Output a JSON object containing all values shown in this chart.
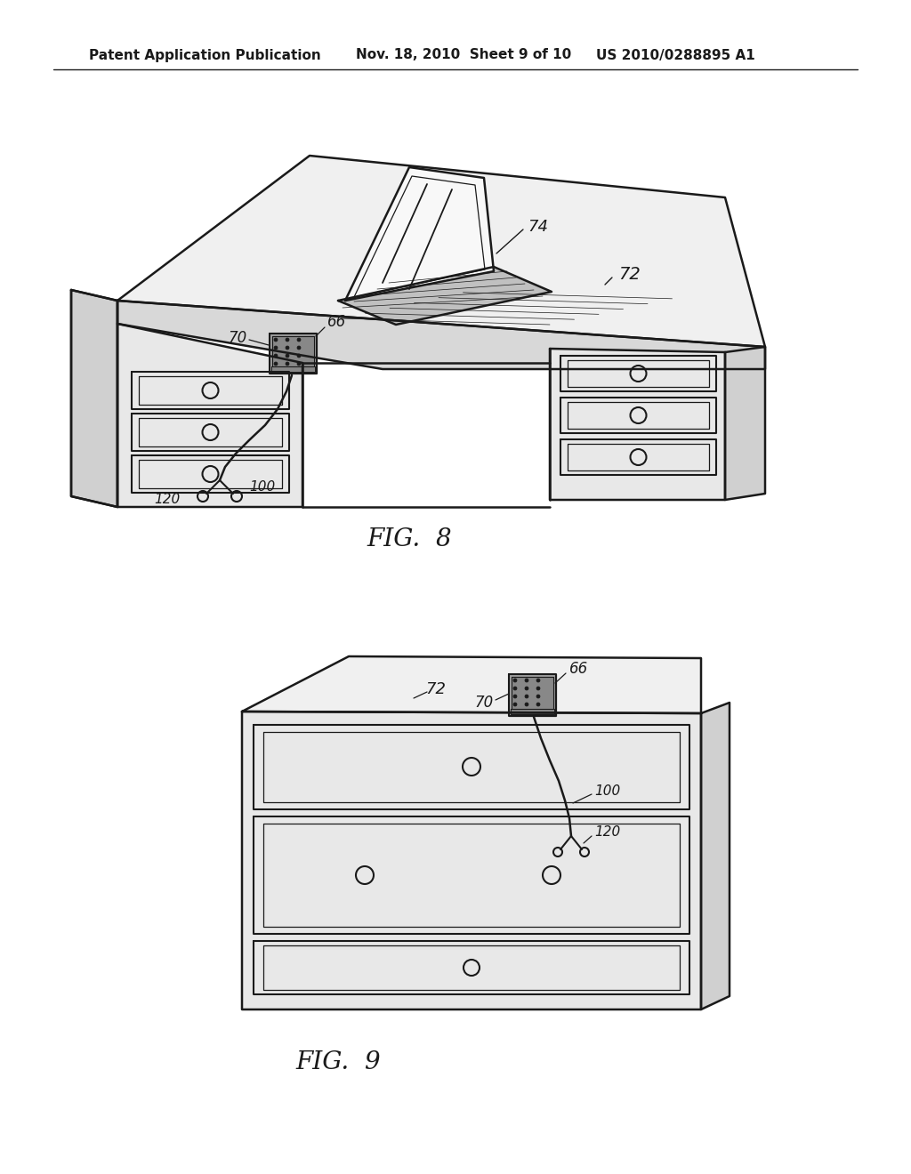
{
  "bg_color": "#ffffff",
  "header_left": "Patent Application Publication",
  "header_mid": "Nov. 18, 2010  Sheet 9 of 10",
  "header_right": "US 2010/0288895 A1",
  "fig8_label": "FIG.  8",
  "fig9_label": "FIG.  9",
  "line_color": "#1a1a1a",
  "fill_top": "#f0f0f0",
  "fill_front": "#e8e8e8",
  "fill_side": "#d0d0d0",
  "fill_edge": "#d8d8d8",
  "line_width": 1.8,
  "fig_label_fontsize": 20,
  "header_fontsize": 11
}
